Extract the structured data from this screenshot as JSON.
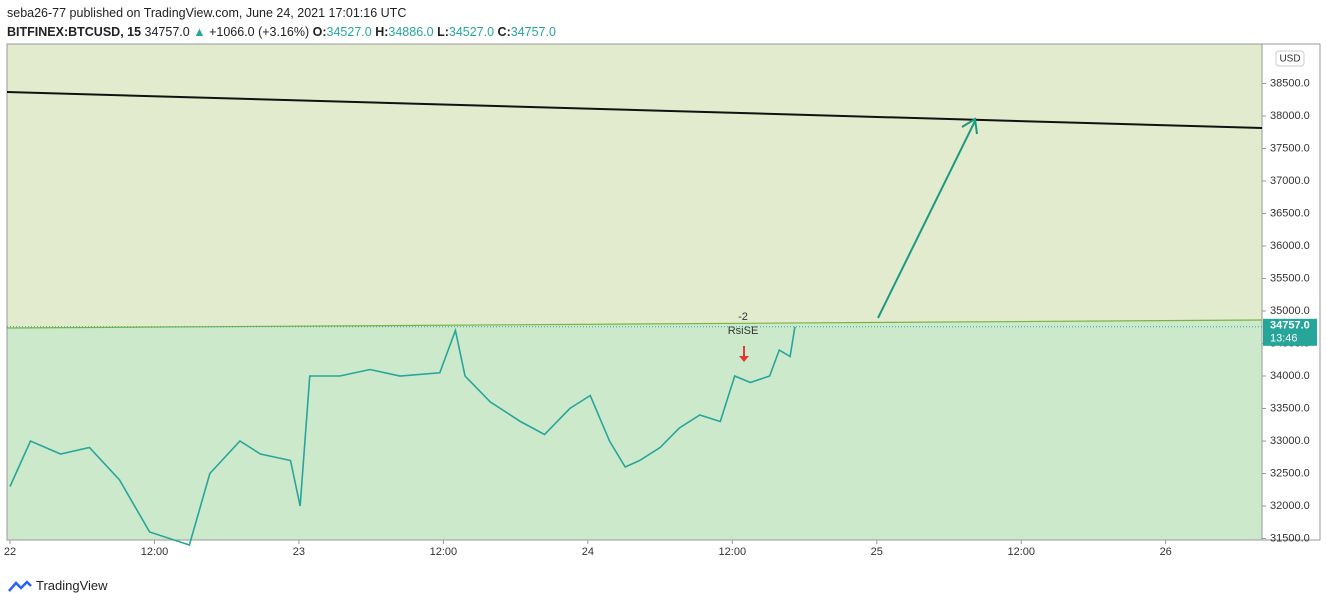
{
  "header": {
    "publisher": "seba26-77 published on TradingView.com, June 24, 2021 17:01:16 UTC",
    "symbol": "BITFINEX:BTCUSD, 15",
    "price": "34757.0",
    "change": "+1066.0 (+3.16%)",
    "open_label": "O:",
    "open": "34527.0",
    "high_label": "H:",
    "high": "34886.0",
    "low_label": "L:",
    "low": "34527.0",
    "close_label": "C:",
    "close": "34757.0"
  },
  "chart_data": {
    "type": "line",
    "x": [
      0,
      1.7,
      4.2,
      6.6,
      9.1,
      11.6,
      14.9,
      16.6,
      19.1,
      20.8,
      23.3,
      24.1,
      24.9,
      27.4,
      29.9,
      32.4,
      35.7,
      37.0,
      37.8,
      39.9,
      42.4,
      44.4,
      46.5,
      48.2,
      49.8,
      51.1,
      52.3,
      54.0,
      55.6,
      57.3,
      59.0,
      60.2,
      61.5,
      63.1,
      63.9,
      64.8,
      65.2
    ],
    "series": [
      {
        "color": "#26a69a",
        "values": [
          32300,
          33000,
          32800,
          32900,
          32400,
          31600,
          31400,
          32500,
          33000,
          32800,
          32700,
          32000,
          34000,
          34000,
          34100,
          34000,
          34050,
          34700,
          34000,
          33600,
          33300,
          33100,
          33500,
          33700,
          33000,
          32600,
          32700,
          32900,
          33200,
          33400,
          33300,
          34000,
          33900,
          34000,
          34400,
          34300,
          34757
        ]
      }
    ],
    "xlim": [
      -0.25,
      104
    ],
    "xticks": [
      {
        "value": 0,
        "label": "22"
      },
      {
        "value": 12,
        "label": "12:00"
      },
      {
        "value": 24,
        "label": "23"
      },
      {
        "value": 36,
        "label": "12:00"
      },
      {
        "value": 48,
        "label": "24"
      },
      {
        "value": 60,
        "label": "12:00"
      },
      {
        "value": 72,
        "label": "25"
      },
      {
        "value": 84,
        "label": "12:00"
      },
      {
        "value": 96,
        "label": "26"
      }
    ],
    "ylim": [
      31477,
      39108
    ],
    "yticks": [
      {
        "value": 31500,
        "label": "31500.0"
      },
      {
        "value": 32000,
        "label": "32000.0"
      },
      {
        "value": 32500,
        "label": "32500.0"
      },
      {
        "value": 33000,
        "label": "33000.0"
      },
      {
        "value": 33500,
        "label": "33500.0"
      },
      {
        "value": 34000,
        "label": "34000.0"
      },
      {
        "value": 34500,
        "label": "34500.0"
      },
      {
        "value": 35000,
        "label": "35000.0"
      },
      {
        "value": 35500,
        "label": "35500.0"
      },
      {
        "value": 36000,
        "label": "36000.0"
      },
      {
        "value": 36500,
        "label": "36500.0"
      },
      {
        "value": 37000,
        "label": "37000.0"
      },
      {
        "value": 37500,
        "label": "37500.0"
      },
      {
        "value": 38000,
        "label": "38000.0"
      },
      {
        "value": 38500,
        "label": "38500.0"
      }
    ],
    "last_price": {
      "value": 34757,
      "label": "34757.0"
    },
    "countdown": "13:46",
    "currency": "USD",
    "annotations": [
      "-2",
      "RsiSE"
    ]
  },
  "footer": {
    "brand": "TradingView"
  }
}
